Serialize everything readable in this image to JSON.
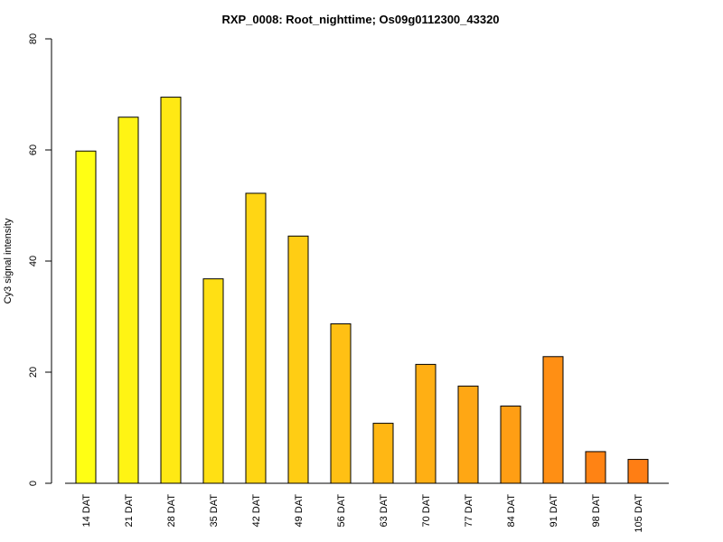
{
  "chart_data": {
    "type": "bar",
    "title": "RXP_0008: Root_nighttime; Os09g0112300_43320",
    "xlabel": "",
    "ylabel": "Cy3 signal intensity",
    "ylim": [
      0,
      80
    ],
    "yticks": [
      0,
      20,
      40,
      60,
      80
    ],
    "grid": false,
    "categories": [
      "14 DAT",
      "21 DAT",
      "28 DAT",
      "35 DAT",
      "42 DAT",
      "49 DAT",
      "56 DAT",
      "63 DAT",
      "70 DAT",
      "77 DAT",
      "84 DAT",
      "91 DAT",
      "98 DAT",
      "105 DAT"
    ],
    "values": [
      59.8,
      65.9,
      69.5,
      36.8,
      52.2,
      44.5,
      28.7,
      10.8,
      21.4,
      17.5,
      13.9,
      22.8,
      5.7,
      4.3
    ],
    "colors": [
      "#FFFF14",
      "#FFF414",
      "#FFE914",
      "#FFE014",
      "#FFD614",
      "#FFCD14",
      "#FFC014",
      "#FFB714",
      "#FFAF14",
      "#FFA714",
      "#FF9E14",
      "#FF8F14",
      "#FF8314",
      "#FF7E14"
    ]
  }
}
